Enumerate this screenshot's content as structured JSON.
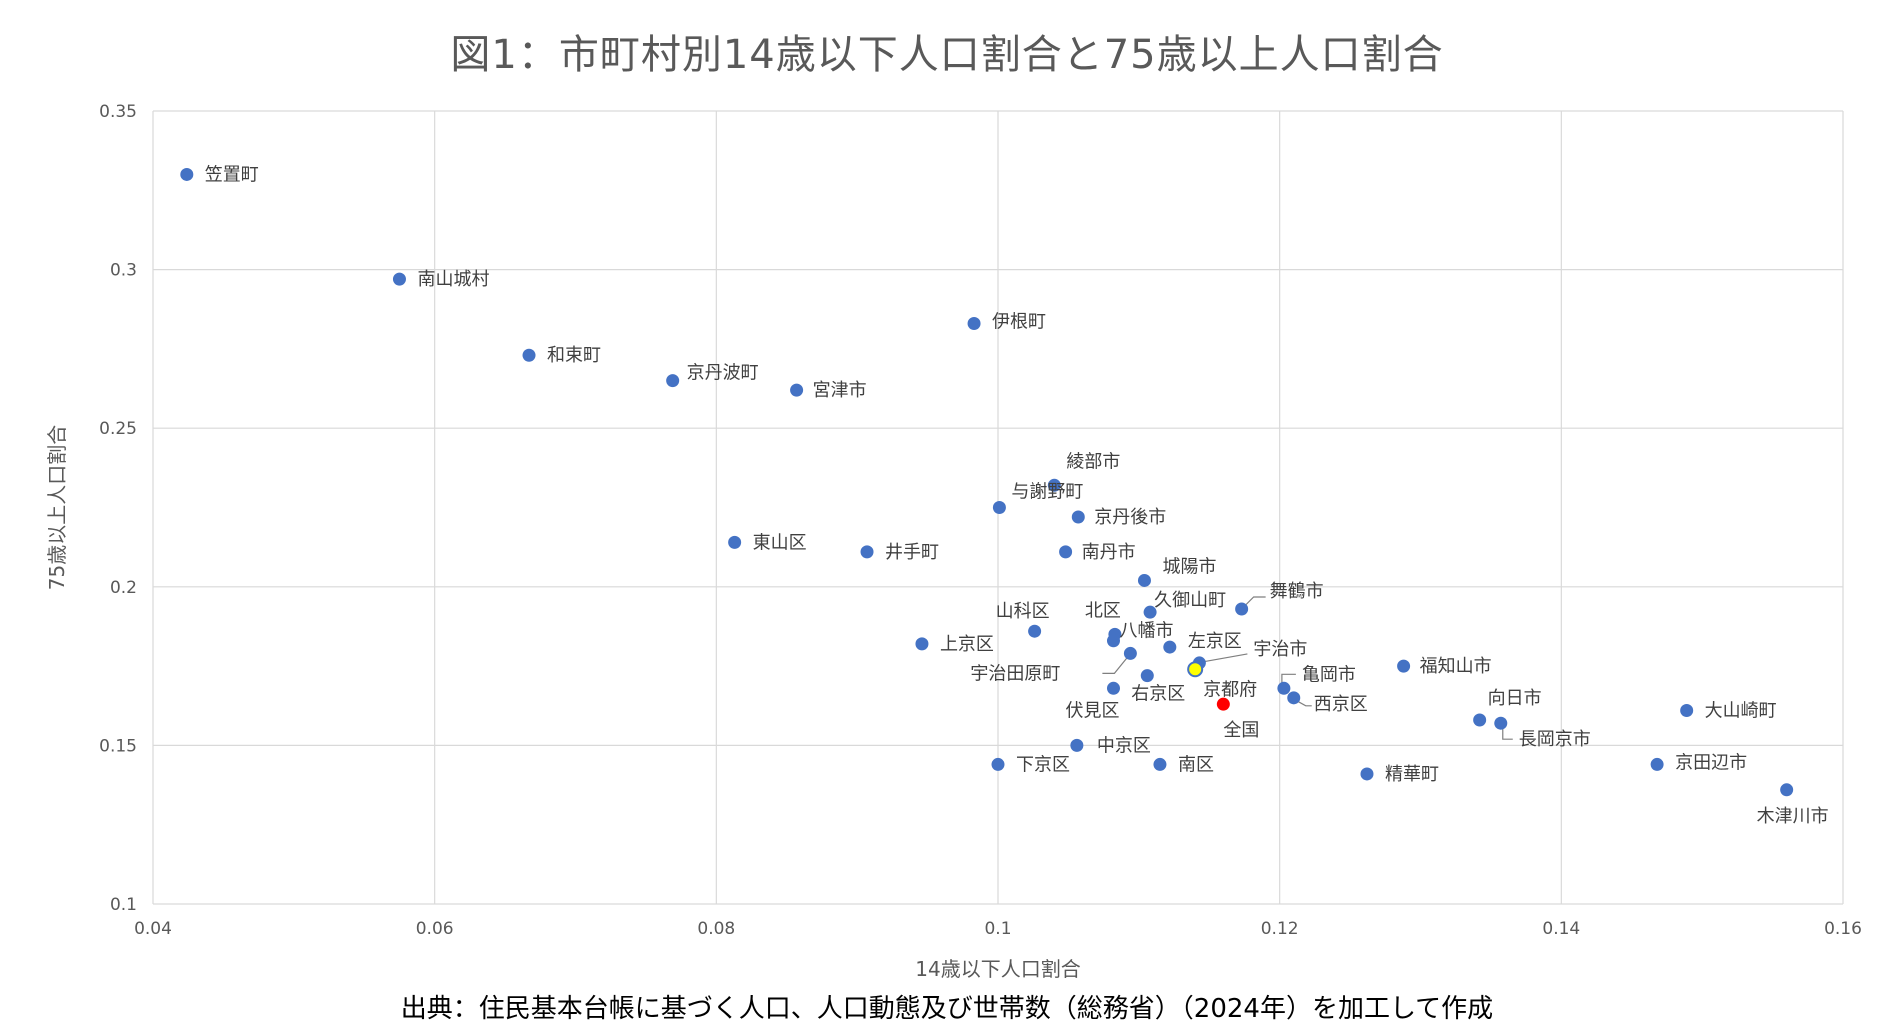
{
  "chart_data": {
    "type": "scatter",
    "title": "図1：市町村別14歳以下人口割合と75歳以上人口割合",
    "xlabel": "14歳以下人口割合",
    "ylabel": "75歳以上人口割合",
    "xlim": [
      0.04,
      0.16
    ],
    "ylim": [
      0.1,
      0.35
    ],
    "xticks": [
      "0.04",
      "0.06",
      "0.08",
      "0.1",
      "0.12",
      "0.14",
      "0.16"
    ],
    "yticks": [
      "0.1",
      "0.15",
      "0.2",
      "0.25",
      "0.3",
      "0.35"
    ],
    "grid": true,
    "legend": "none",
    "colors": {
      "point": "#4472C4",
      "highlight_kyoto": "#FFFF00",
      "highlight_national": "#FF0000",
      "grid": "#D9D9D9"
    },
    "points": [
      {
        "label": "笠置町",
        "x": 0.0424,
        "y": 0.33
      },
      {
        "label": "南山城村",
        "x": 0.0575,
        "y": 0.297
      },
      {
        "label": "和束町",
        "x": 0.0667,
        "y": 0.273
      },
      {
        "label": "京丹波町",
        "x": 0.0769,
        "y": 0.265
      },
      {
        "label": "宮津市",
        "x": 0.0857,
        "y": 0.262
      },
      {
        "label": "伊根町",
        "x": 0.0983,
        "y": 0.283
      },
      {
        "label": "東山区",
        "x": 0.0813,
        "y": 0.214
      },
      {
        "label": "井手町",
        "x": 0.0907,
        "y": 0.211
      },
      {
        "label": "綾部市",
        "x": 0.104,
        "y": 0.232
      },
      {
        "label": "与謝野町",
        "x": 0.1001,
        "y": 0.225
      },
      {
        "label": "京丹後市",
        "x": 0.1057,
        "y": 0.222
      },
      {
        "label": "南丹市",
        "x": 0.1048,
        "y": 0.211
      },
      {
        "label": "城陽市",
        "x": 0.1104,
        "y": 0.202
      },
      {
        "label": "久御山町",
        "x": 0.1108,
        "y": 0.192
      },
      {
        "label": "舞鶴市",
        "x": 0.1173,
        "y": 0.193
      },
      {
        "label": "山科区",
        "x": 0.1026,
        "y": 0.186
      },
      {
        "label": "上京区",
        "x": 0.0946,
        "y": 0.182
      },
      {
        "label": "北区",
        "x": 0.1083,
        "y": 0.185
      },
      {
        "label": "八幡市",
        "x": 0.1082,
        "y": 0.183
      },
      {
        "label": "左京区",
        "x": 0.1122,
        "y": 0.181
      },
      {
        "label": "宇治田原町",
        "x": 0.1094,
        "y": 0.179
      },
      {
        "label": "宇治市",
        "x": 0.1143,
        "y": 0.176
      },
      {
        "label": "京都府",
        "x": 0.114,
        "y": 0.174,
        "highlight": "kyoto"
      },
      {
        "label": "右京区",
        "x": 0.1106,
        "y": 0.172
      },
      {
        "label": "伏見区",
        "x": 0.1082,
        "y": 0.168
      },
      {
        "label": "全国",
        "x": 0.116,
        "y": 0.163,
        "highlight": "national"
      },
      {
        "label": "亀岡市",
        "x": 0.1203,
        "y": 0.168
      },
      {
        "label": "西京区",
        "x": 0.121,
        "y": 0.165
      },
      {
        "label": "福知山市",
        "x": 0.1288,
        "y": 0.175
      },
      {
        "label": "向日市",
        "x": 0.1342,
        "y": 0.158
      },
      {
        "label": "長岡京市",
        "x": 0.1357,
        "y": 0.157
      },
      {
        "label": "大山崎町",
        "x": 0.1489,
        "y": 0.161
      },
      {
        "label": "中京区",
        "x": 0.1056,
        "y": 0.15
      },
      {
        "label": "下京区",
        "x": 0.1,
        "y": 0.144
      },
      {
        "label": "南区",
        "x": 0.1115,
        "y": 0.144
      },
      {
        "label": "精華町",
        "x": 0.1262,
        "y": 0.141
      },
      {
        "label": "京田辺市",
        "x": 0.1468,
        "y": 0.144
      },
      {
        "label": "木津川市",
        "x": 0.156,
        "y": 0.136
      }
    ]
  },
  "source_note": "出典：住民基本台帳に基づく人口、人口動態及び世帯数（総務省）（2024年）を加工して作成"
}
